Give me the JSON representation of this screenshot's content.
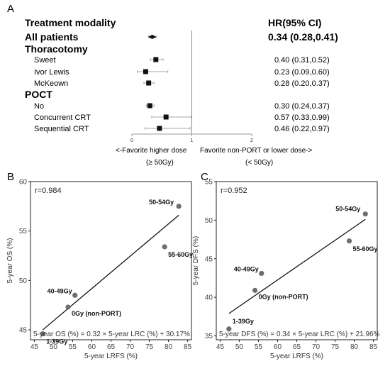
{
  "panel_labels": {
    "a": "A",
    "b": "B",
    "c": "C"
  },
  "chart_data": [
    {
      "type": "forest",
      "header_left": "Treatment modality",
      "header_right": "HR(95% CI)",
      "x": {
        "range": [
          0,
          2
        ],
        "ticks": [
          0,
          1,
          2
        ],
        "reference_line": 1
      },
      "rows": [
        {
          "label": "All patients",
          "style": "bold",
          "hr": 0.34,
          "lo": 0.28,
          "hi": 0.41,
          "text": "0.34 (0.28,0.41)",
          "marker": "diamond"
        },
        {
          "label": "Thoracotomy",
          "style": "group"
        },
        {
          "label": "Sweet",
          "style": "indent",
          "hr": 0.4,
          "lo": 0.31,
          "hi": 0.52,
          "text": "0.40 (0.31,0.52)",
          "marker": "square"
        },
        {
          "label": "Ivor Lewis",
          "style": "indent",
          "hr": 0.23,
          "lo": 0.09,
          "hi": 0.6,
          "text": "0.23 (0.09,0.60)",
          "marker": "square"
        },
        {
          "label": "McKeown",
          "style": "indent",
          "hr": 0.28,
          "lo": 0.2,
          "hi": 0.37,
          "text": "0.28 (0.20,0.37)",
          "marker": "square"
        },
        {
          "label": "POCT",
          "style": "group"
        },
        {
          "label": "No",
          "style": "indent",
          "hr": 0.3,
          "lo": 0.24,
          "hi": 0.37,
          "text": "0.30 (0.24,0.37)",
          "marker": "square"
        },
        {
          "label": "Concurrent CRT",
          "style": "indent",
          "hr": 0.57,
          "lo": 0.33,
          "hi": 0.99,
          "text": "0.57 (0.33,0.99)",
          "marker": "square"
        },
        {
          "label": "Sequential CRT",
          "style": "indent",
          "hr": 0.46,
          "lo": 0.22,
          "hi": 0.97,
          "text": "0.46 (0.22,0.97)",
          "marker": "square"
        }
      ],
      "annotation_left": [
        "<-Favorite higher dose",
        "(≥ 50Gy)"
      ],
      "annotation_right": [
        "Favorite non-PORT or lower dose->",
        "(< 50Gy)"
      ]
    },
    {
      "type": "scatter",
      "panel": "B",
      "xlabel": "5-year LRFS (%)",
      "ylabel": "5-year OS (%)",
      "xlim": [
        44,
        86
      ],
      "ylim": [
        44,
        60
      ],
      "xticks": [
        45,
        50,
        55,
        60,
        65,
        70,
        75,
        80,
        85
      ],
      "yticks": [
        45,
        50,
        55,
        60
      ],
      "r_label": "r=0.984",
      "points": [
        {
          "label": "1-39Gy",
          "x": 47.2,
          "y": 44.6
        },
        {
          "label": "0Gy (non-PORT)",
          "x": 53.8,
          "y": 47.3
        },
        {
          "label": "40-49Gy",
          "x": 55.6,
          "y": 48.5
        },
        {
          "label": "55-60Gy",
          "x": 79.0,
          "y": 53.4
        },
        {
          "label": "50-54Gy",
          "x": 82.7,
          "y": 57.5
        }
      ],
      "fit_line": {
        "x": [
          47.2,
          82.7
        ],
        "y": [
          45.0,
          56.6
        ]
      },
      "equation": "5-year OS (%) = 0.32 × 5-year LRC (%) + 30.17%"
    },
    {
      "type": "scatter",
      "panel": "C",
      "xlabel": "5-year LRFS (%)",
      "ylabel": "5-year DFS (%)",
      "xlim": [
        44,
        86
      ],
      "ylim": [
        34.5,
        55
      ],
      "xticks": [
        45,
        50,
        55,
        60,
        65,
        70,
        75,
        80,
        85
      ],
      "yticks": [
        35,
        40,
        45,
        50,
        55
      ],
      "r_label": "r=0.952",
      "points": [
        {
          "label": "1-39Gy",
          "x": 47.3,
          "y": 35.9
        },
        {
          "label": "0Gy (non-PORT)",
          "x": 54.1,
          "y": 40.9
        },
        {
          "label": "40-49Gy",
          "x": 55.8,
          "y": 43.1
        },
        {
          "label": "55-60Gy",
          "x": 78.7,
          "y": 47.3
        },
        {
          "label": "50-54Gy",
          "x": 82.9,
          "y": 50.8
        }
      ],
      "fit_line": {
        "x": [
          47.3,
          82.9
        ],
        "y": [
          37.9,
          50.1
        ]
      },
      "equation": "5-year DFS (%) = 0.34 × 5-year LRC (%) + 21.96%"
    }
  ]
}
